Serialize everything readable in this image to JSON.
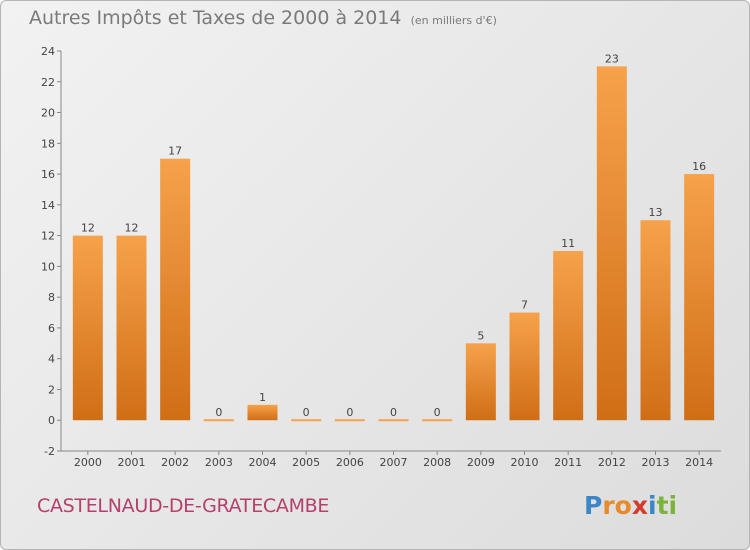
{
  "header": {
    "title": "Autres Impôts et Taxes de 2000 à 2014",
    "unit": "(en milliers d'€)"
  },
  "footer": {
    "commune": "CASTELNAUD-DE-GRATECAMBE",
    "logo": [
      "P",
      "r",
      "o",
      "x",
      "i",
      "t",
      "i"
    ]
  },
  "colors": {
    "bar_light": "#f6a24a",
    "bar_dark": "#d06e16",
    "commune": "#b5406b",
    "logo": [
      "#3c86c7",
      "#e8892a",
      "#e8892a",
      "#d13c2d",
      "#3c86c7",
      "#7ab43a",
      "#7ab43a"
    ]
  },
  "chart_data": {
    "type": "bar",
    "categories": [
      "2000",
      "2001",
      "2002",
      "2003",
      "2004",
      "2005",
      "2006",
      "2007",
      "2008",
      "2009",
      "2010",
      "2011",
      "2012",
      "2013",
      "2014"
    ],
    "values": [
      12,
      12,
      17,
      0,
      1,
      0,
      0,
      0,
      0,
      5,
      7,
      11,
      23,
      13,
      16
    ],
    "ylim": [
      -2,
      24
    ],
    "yticks": [
      -2,
      0,
      2,
      4,
      6,
      8,
      10,
      12,
      14,
      16,
      18,
      20,
      22,
      24
    ],
    "grid": false,
    "legend": "none"
  }
}
